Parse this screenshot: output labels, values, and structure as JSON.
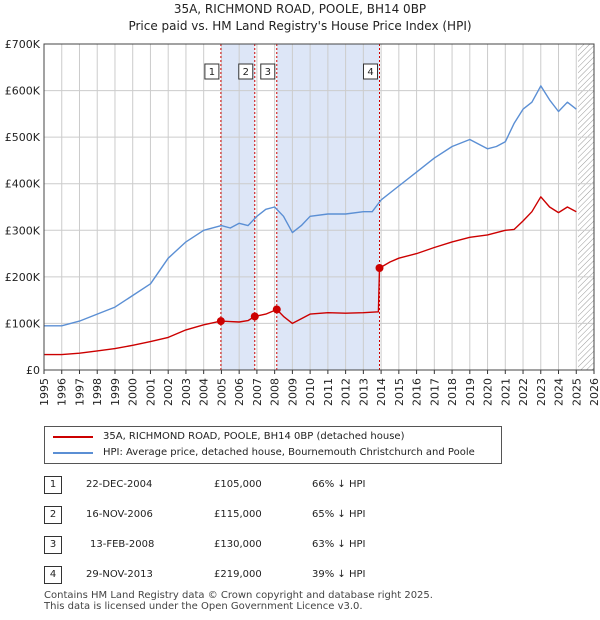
{
  "header": {
    "title_line1": "35A, RICHMOND ROAD, POOLE, BH14 0BP",
    "title_line2": "Price paid vs. HM Land Registry's House Price Index (HPI)"
  },
  "colors": {
    "red": "#cc0000",
    "blue": "#5b8fd4",
    "shade": "#dde6f7",
    "grid": "#cccccc"
  },
  "chart_data": {
    "type": "line",
    "title": "Price paid vs. HM Land Registry's House Price Index (HPI)",
    "xlim": [
      1995,
      2026
    ],
    "ylim": [
      0,
      700000
    ],
    "y_ticks": [
      0,
      100000,
      200000,
      300000,
      400000,
      500000,
      600000,
      700000
    ],
    "y_tick_labels": [
      "£0",
      "£100K",
      "£200K",
      "£300K",
      "£400K",
      "£500K",
      "£600K",
      "£700K"
    ],
    "x_ticks": [
      1995,
      1996,
      1997,
      1998,
      1999,
      2000,
      2001,
      2002,
      2003,
      2004,
      2005,
      2006,
      2007,
      2008,
      2009,
      2010,
      2011,
      2012,
      2013,
      2014,
      2015,
      2016,
      2017,
      2018,
      2019,
      2020,
      2021,
      2022,
      2023,
      2024,
      2025,
      2026
    ],
    "shaded_ranges": [
      [
        2004.97,
        2006.88
      ],
      [
        2008.12,
        2013.91
      ]
    ],
    "future_hatch_from": 2025.1,
    "series": [
      {
        "name": "35A, RICHMOND ROAD, POOLE, BH14 0BP (detached house)",
        "color": "#cc0000",
        "x": [
          1995,
          1996,
          1997,
          1998,
          1999,
          2000,
          2001,
          2002,
          2003,
          2004,
          2004.97,
          2005.5,
          2006,
          2006.5,
          2006.88,
          2007.5,
          2008.12,
          2008.5,
          2009,
          2009.5,
          2010,
          2011,
          2012,
          2013,
          2013.85,
          2013.91,
          2014.5,
          2015,
          2016,
          2017,
          2018,
          2019,
          2020,
          2021,
          2021.5,
          2022,
          2022.5,
          2023,
          2023.5,
          2024,
          2024.5,
          2025
        ],
        "values": [
          33000,
          33000,
          36000,
          41000,
          46000,
          53000,
          61000,
          70000,
          86000,
          97000,
          105000,
          104000,
          103000,
          106000,
          115000,
          120000,
          130000,
          115000,
          100000,
          110000,
          120000,
          123000,
          122000,
          123000,
          125000,
          219000,
          232000,
          240000,
          250000,
          263000,
          275000,
          285000,
          290000,
          300000,
          302000,
          320000,
          340000,
          372000,
          350000,
          338000,
          350000,
          340000
        ]
      },
      {
        "name": "HPI: Average price, detached house, Bournemouth Christchurch and Poole",
        "color": "#5b8fd4",
        "x": [
          1995,
          1996,
          1997,
          1998,
          1999,
          2000,
          2001,
          2002,
          2003,
          2004,
          2005,
          2005.5,
          2006,
          2006.5,
          2007,
          2007.5,
          2008,
          2008.5,
          2009,
          2009.5,
          2010,
          2011,
          2012,
          2013,
          2013.5,
          2014,
          2015,
          2016,
          2017,
          2018,
          2019,
          2020,
          2020.5,
          2021,
          2021.5,
          2022,
          2022.5,
          2023,
          2023.5,
          2024,
          2024.5,
          2025
        ],
        "values": [
          95000,
          95000,
          105000,
          120000,
          135000,
          160000,
          185000,
          240000,
          275000,
          300000,
          310000,
          305000,
          315000,
          310000,
          330000,
          345000,
          350000,
          330000,
          295000,
          310000,
          330000,
          335000,
          335000,
          340000,
          340000,
          365000,
          395000,
          425000,
          455000,
          480000,
          495000,
          475000,
          480000,
          490000,
          530000,
          560000,
          575000,
          610000,
          580000,
          555000,
          575000,
          560000
        ]
      }
    ],
    "markers": [
      {
        "label": "1",
        "x": 2004.97,
        "value": 105000
      },
      {
        "label": "2",
        "x": 2006.88,
        "value": 115000
      },
      {
        "label": "3",
        "x": 2008.12,
        "value": 130000
      },
      {
        "label": "4",
        "x": 2013.91,
        "value": 219000
      }
    ]
  },
  "legend": {
    "red_label": "35A, RICHMOND ROAD, POOLE, BH14 0BP (detached house)",
    "blue_label": "HPI: Average price, detached house, Bournemouth Christchurch and Poole"
  },
  "sales": [
    {
      "num": "1",
      "date": "22-DEC-2004",
      "price": "£105,000",
      "hpi": "66% ↓ HPI"
    },
    {
      "num": "2",
      "date": "16-NOV-2006",
      "price": "£115,000",
      "hpi": "65% ↓ HPI"
    },
    {
      "num": "3",
      "date": "13-FEB-2008",
      "price": "£130,000",
      "hpi": "63% ↓ HPI"
    },
    {
      "num": "4",
      "date": "29-NOV-2013",
      "price": "£219,000",
      "hpi": "39% ↓ HPI"
    }
  ],
  "footer": {
    "line1": "Contains HM Land Registry data © Crown copyright and database right 2025.",
    "line2": "This data is licensed under the Open Government Licence v3.0."
  }
}
